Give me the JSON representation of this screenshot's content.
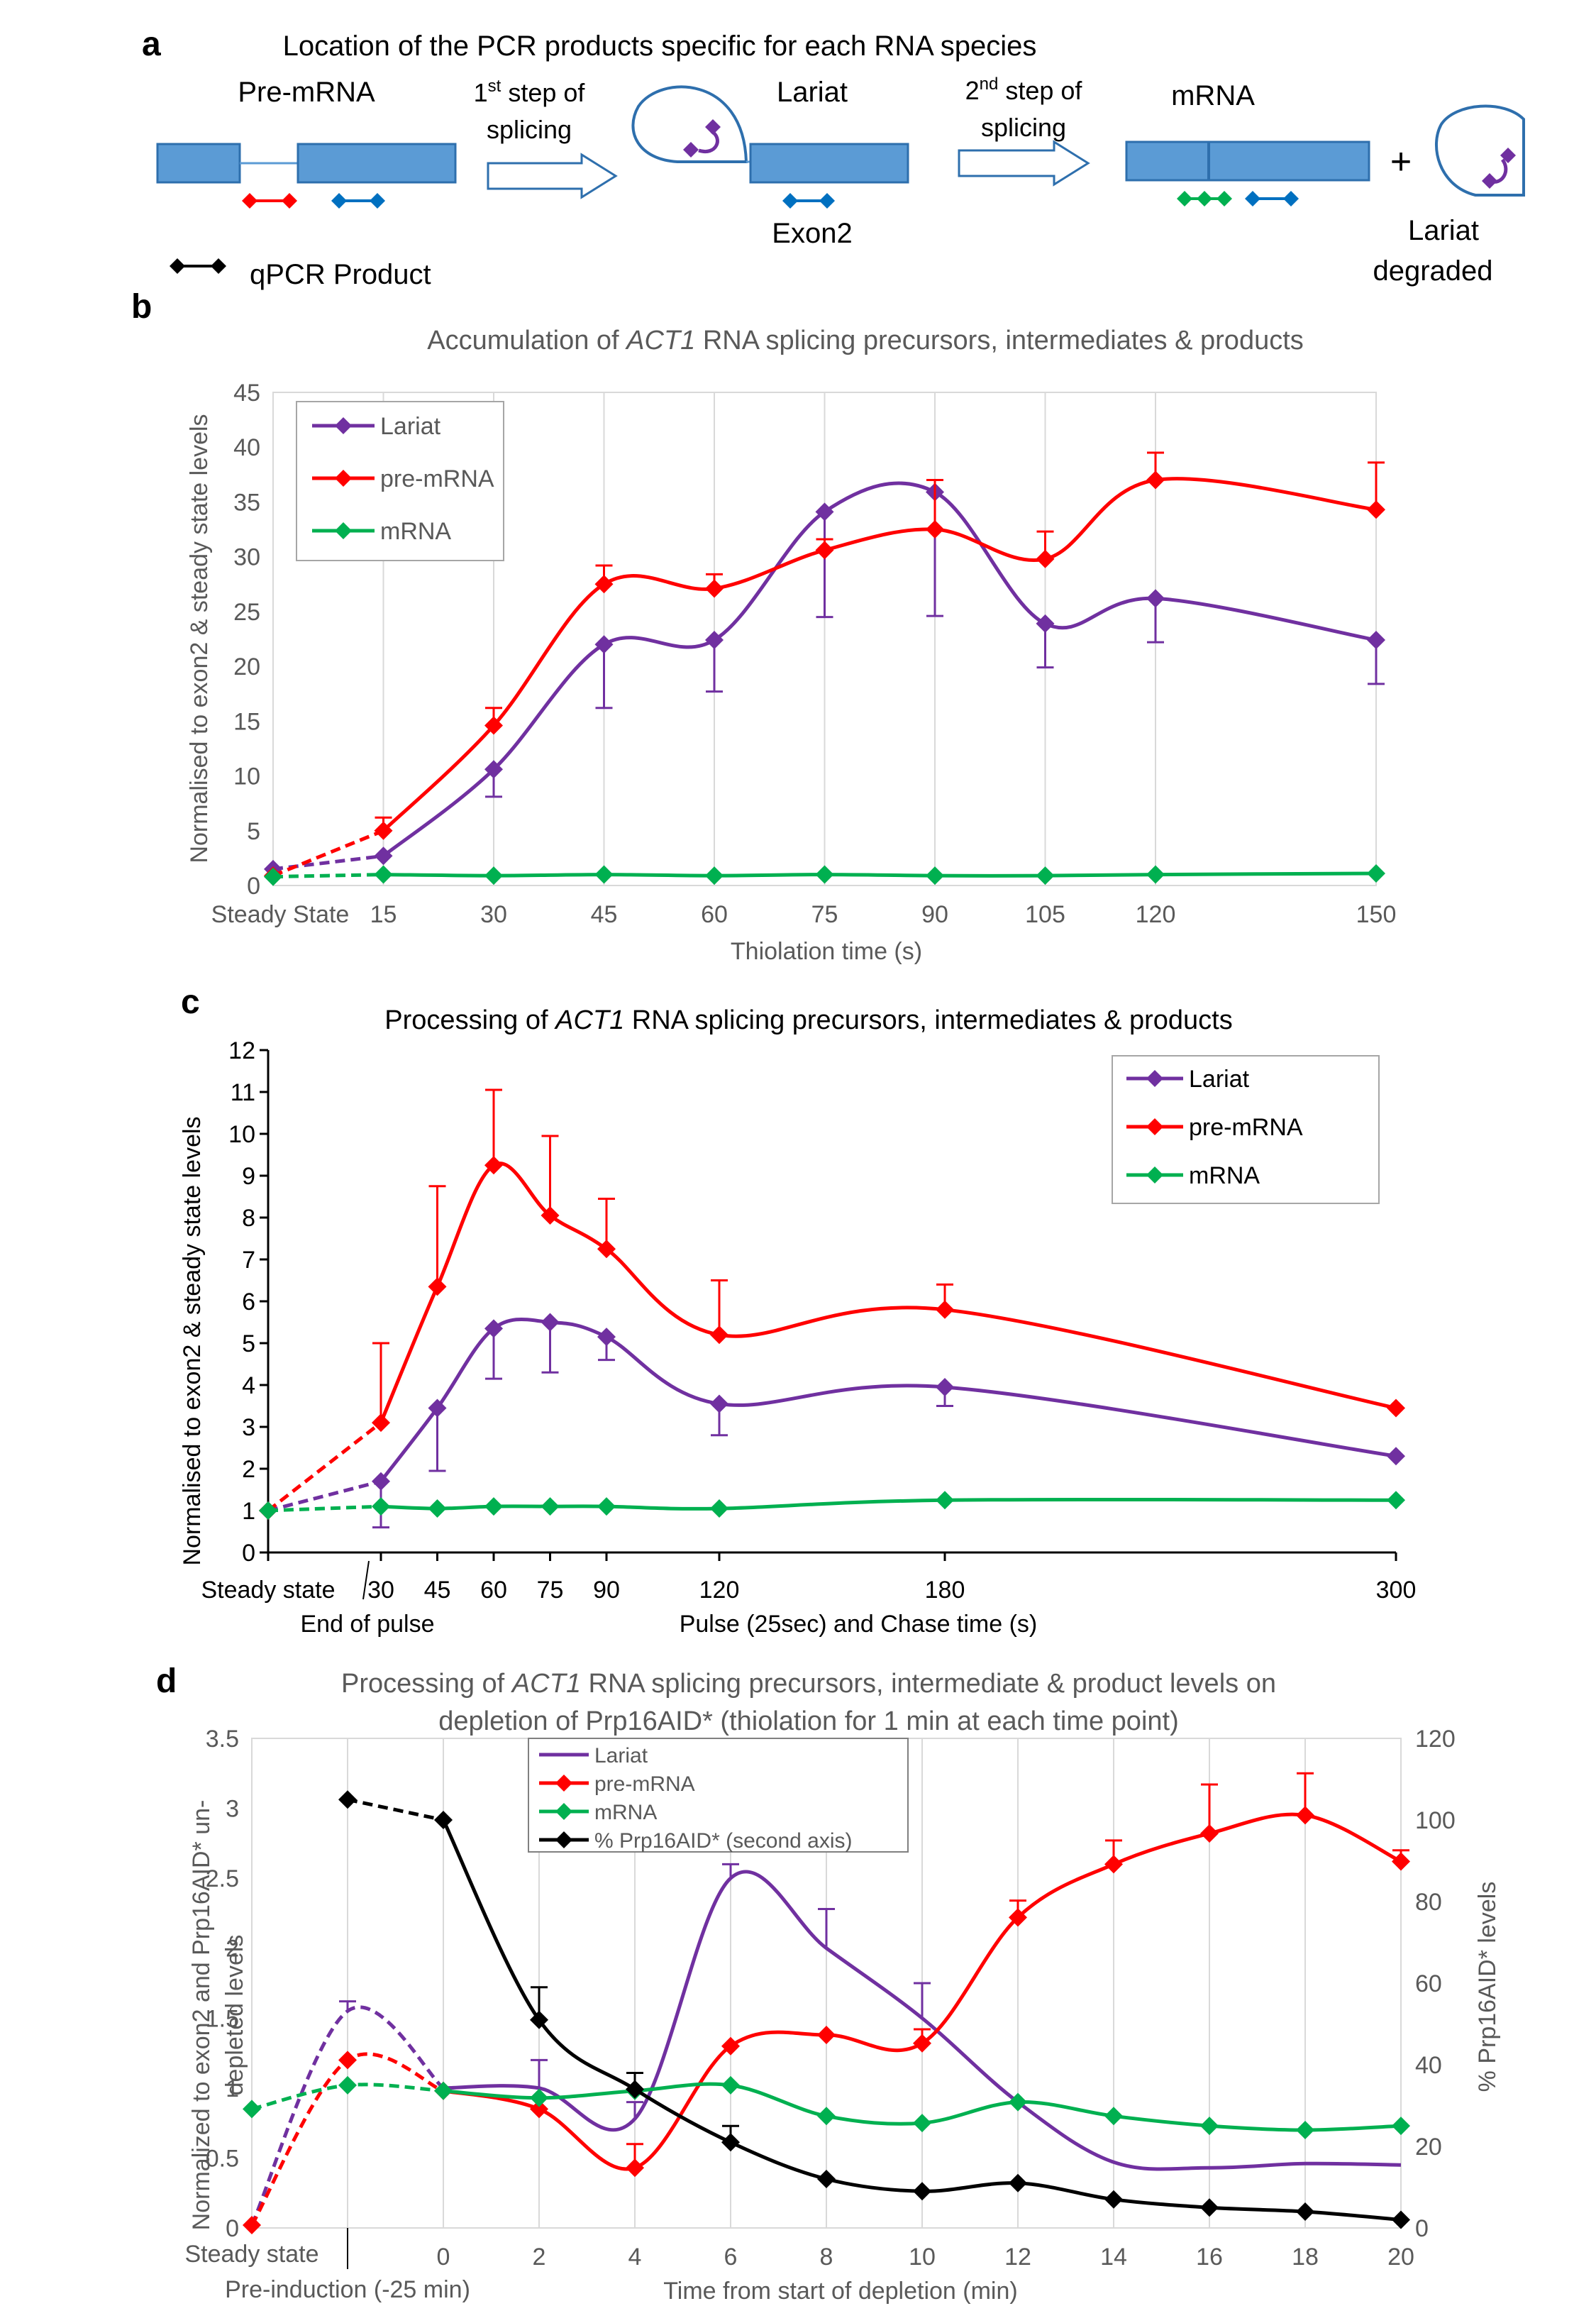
{
  "panel_a": {
    "letter": "a",
    "title": "Location of the PCR products specific for each RNA species",
    "premrna_label": "Pre-mRNA",
    "step1": {
      "line1_pre": "1",
      "line1_sup": "st",
      "line1_post": " step of",
      "line2": "splicing"
    },
    "lariat_label": "Lariat",
    "exon2_label": "Exon2",
    "step2": {
      "line1_pre": "2",
      "line1_sup": "nd",
      "line1_post": " step of",
      "line2": "splicing"
    },
    "mrna_label": "mRNA",
    "plus": "+",
    "lariat_degraded_line1": "Lariat",
    "lariat_degraded_line2": "degraded",
    "qpcr_legend": "qPCR Product",
    "colors": {
      "box": "#5b9bd5",
      "box_edge": "#2e6fad",
      "red": "#ff0000",
      "blue": "#0070c0",
      "green": "#00b050",
      "purple": "#7030a0",
      "black": "#000000"
    }
  },
  "chart_data": [
    {
      "panel_letter": "b",
      "type": "line",
      "title_pre": "Accumulation of ",
      "title_italic": "ACT1",
      "title_post": " RNA splicing precursors, intermediates & products",
      "xlabel": "Thiolation time (s)",
      "ylabel": "Normalised to exon2 & steady state levels",
      "x_positions": [
        0,
        15,
        30,
        45,
        60,
        75,
        90,
        105,
        120,
        150
      ],
      "x_tick_labels": [
        "Steady State",
        "15",
        "30",
        "45",
        "60",
        "75",
        "90",
        "105",
        "120",
        "150"
      ],
      "xlim": [
        0,
        150
      ],
      "ylim": [
        0,
        45
      ],
      "y_ticks": [
        0,
        5,
        10,
        15,
        20,
        25,
        30,
        35,
        40,
        45
      ],
      "grid": "vertical",
      "legend_position": "top-left",
      "series": [
        {
          "name": "Lariat",
          "color": "#7030a0",
          "values": [
            1.5,
            2.7,
            10.6,
            22.0,
            22.4,
            34.1,
            35.9,
            23.9,
            26.2,
            22.4
          ],
          "errors": [
            null,
            null,
            2.5,
            5.8,
            4.7,
            9.6,
            11.3,
            4.0,
            4.0,
            4.0
          ],
          "error_dir": "down"
        },
        {
          "name": "pre-mRNA",
          "color": "#ff0000",
          "values": [
            0.9,
            5.0,
            14.6,
            27.5,
            27.1,
            30.6,
            32.5,
            29.8,
            37.0,
            34.3
          ],
          "errors": [
            null,
            1.2,
            1.6,
            1.7,
            1.3,
            1.0,
            4.5,
            2.5,
            2.5,
            4.3
          ],
          "error_dir": "up"
        },
        {
          "name": "mRNA",
          "color": "#00b050",
          "values": [
            0.8,
            1.0,
            0.9,
            1.0,
            0.9,
            1.0,
            0.9,
            0.9,
            1.0,
            1.1
          ],
          "errors": [],
          "error_dir": "up"
        }
      ]
    },
    {
      "panel_letter": "c",
      "type": "line",
      "title_pre": "Processing of ",
      "title_italic": "ACT1",
      "title_post": " RNA splicing precursors, intermediates & products",
      "xlabel": "Pulse (25sec) and Chase time (s)",
      "ylabel": "Normalised to exon2 & steady state levels",
      "x_positions": [
        0,
        30,
        45,
        60,
        75,
        90,
        120,
        180,
        300
      ],
      "x_tick_labels": [
        "Steady state",
        "30",
        "45",
        "60",
        "75",
        "90",
        "120",
        "180",
        "300"
      ],
      "annotation": "End of pulse",
      "xlim": [
        0,
        300
      ],
      "ylim": [
        0,
        12
      ],
      "y_ticks": [
        0,
        1,
        2,
        3,
        4,
        5,
        6,
        7,
        8,
        9,
        10,
        11,
        12
      ],
      "grid": "none",
      "legend_position": "top-right",
      "series": [
        {
          "name": "Lariat",
          "color": "#7030a0",
          "values": [
            1.0,
            1.7,
            3.45,
            5.35,
            5.5,
            5.15,
            3.55,
            3.95,
            2.3
          ],
          "errors": [
            null,
            1.1,
            1.5,
            1.2,
            1.2,
            0.55,
            0.75,
            0.45,
            null
          ],
          "error_dir": "down"
        },
        {
          "name": "pre-mRNA",
          "color": "#ff0000",
          "values": [
            1.0,
            3.1,
            6.35,
            9.25,
            8.05,
            7.25,
            5.2,
            5.8,
            3.45
          ],
          "errors": [
            null,
            1.9,
            2.4,
            1.8,
            1.9,
            1.2,
            1.3,
            0.6,
            null
          ],
          "error_dir": "up"
        },
        {
          "name": "mRNA",
          "color": "#00b050",
          "values": [
            1.0,
            1.1,
            1.05,
            1.1,
            1.1,
            1.1,
            1.05,
            1.25,
            1.25
          ],
          "errors": [],
          "error_dir": "up"
        }
      ]
    },
    {
      "panel_letter": "d",
      "type": "line",
      "title_line1_pre": "Processing of ",
      "title_line1_italic": "ACT1",
      "title_line1_post": " RNA splicing precursors, intermediate & product levels on",
      "title_line2": "depletion of Prp16AID* (thiolation for 1 min at each time point)",
      "xlabel": "Time from start of depletion (min)",
      "ylabel_line1": "Normalized to exon2 and Prp16AID* un-",
      "ylabel_line2": "depleted levels",
      "y2label": "% Prp16AID* levels",
      "x_positions": [
        -4,
        -2,
        0,
        2,
        4,
        6,
        8,
        10,
        12,
        14,
        16,
        18,
        20
      ],
      "x_tick_labels": [
        "Steady state",
        "Pre-induction (-25 min)",
        "0",
        "2",
        "4",
        "6",
        "8",
        "10",
        "12",
        "14",
        "16",
        "18",
        "20"
      ],
      "xlim": [
        -4,
        20
      ],
      "ylim": [
        0,
        3.5
      ],
      "y_ticks": [
        "0",
        "0.5",
        "1",
        "1.5",
        "2",
        "2.5",
        "3",
        "3.5"
      ],
      "y2lim": [
        0,
        120
      ],
      "y2_ticks": [
        "0",
        "20",
        "40",
        "60",
        "80",
        "100",
        "120"
      ],
      "grid": "vertical",
      "legend_position": "top-center",
      "series": [
        {
          "name": "Lariat",
          "color": "#7030a0",
          "axis": "left",
          "marker": "none",
          "x": [
            -4,
            -2,
            0,
            2,
            4,
            6,
            8,
            10,
            12,
            14,
            16,
            18,
            20
          ],
          "values": [
            0.02,
            1.55,
            1.0,
            1.0,
            0.78,
            2.5,
            2.0,
            1.5,
            0.9,
            0.47,
            0.43,
            0.46,
            0.45
          ],
          "errors": [
            null,
            0.07,
            null,
            0.2,
            0.12,
            0.1,
            0.28,
            0.25,
            null,
            null,
            null,
            null,
            null
          ],
          "error_dir": "up"
        },
        {
          "name": "pre-mRNA",
          "color": "#ff0000",
          "axis": "left",
          "marker": "diamond",
          "x": [
            -4,
            -2,
            0,
            2,
            4,
            6,
            8,
            10,
            12,
            14,
            16,
            18,
            20
          ],
          "values": [
            0.02,
            1.2,
            0.98,
            0.85,
            0.43,
            1.3,
            1.38,
            1.32,
            2.22,
            2.6,
            2.82,
            2.95,
            2.62
          ],
          "errors": [
            null,
            null,
            null,
            null,
            0.17,
            null,
            null,
            0.1,
            0.12,
            0.17,
            0.35,
            0.3,
            0.08
          ],
          "error_dir": "up"
        },
        {
          "name": "mRNA",
          "color": "#00b050",
          "axis": "left",
          "marker": "diamond",
          "x": [
            -4,
            -2,
            0,
            2,
            4,
            6,
            8,
            10,
            12,
            14,
            16,
            18,
            20
          ],
          "values": [
            0.85,
            1.02,
            0.98,
            0.93,
            0.98,
            1.02,
            0.8,
            0.75,
            0.9,
            0.8,
            0.73,
            0.7,
            0.73
          ],
          "errors": [],
          "error_dir": "up"
        },
        {
          "name": "% Prp16AID* (second axis)",
          "color": "#000000",
          "axis": "right",
          "marker": "diamond",
          "x": [
            -2,
            0,
            2,
            4,
            6,
            8,
            10,
            12,
            14,
            16,
            18,
            20
          ],
          "values": [
            105,
            100,
            51,
            34,
            21,
            12,
            9,
            11,
            7,
            5,
            4,
            2
          ],
          "errors": [
            null,
            null,
            8,
            4,
            4,
            null,
            null,
            null,
            null,
            null,
            null,
            null
          ],
          "error_dir": "up"
        }
      ]
    }
  ]
}
